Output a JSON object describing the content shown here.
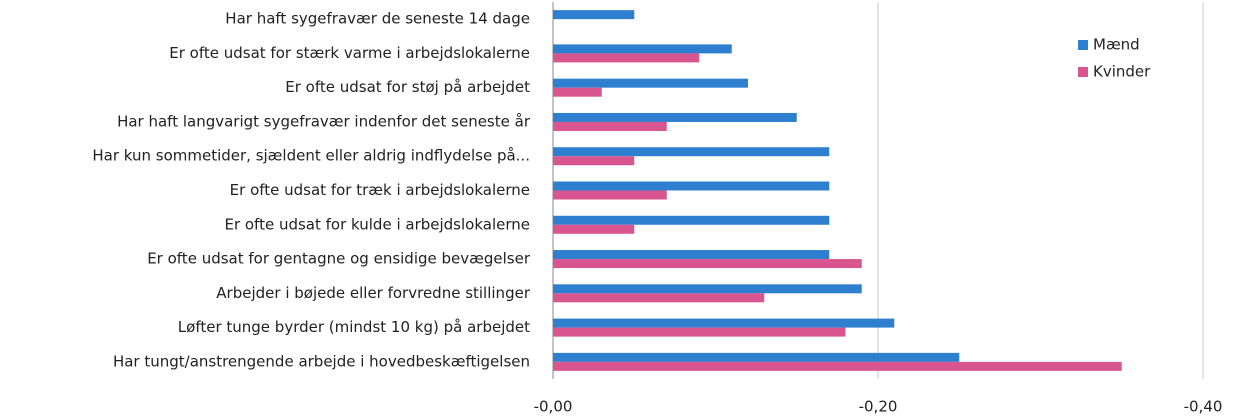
{
  "chart_data": {
    "type": "barh",
    "categories": [
      "Har haft sygefravær de seneste 14 dage",
      "Er ofte udsat for stærk varme i arbejdslokalerne",
      "Er ofte udsat for støj på arbejdet",
      "Har haft langvarigt sygefravær indenfor det seneste år",
      "Har kun sommetider, sjældent eller aldrig indflydelse på...",
      "Er ofte udsat for træk i arbejdslokalerne",
      "Er ofte udsat for kulde i arbejdslokalerne",
      "Er ofte udsat for gentagne  og ensidige bevægelser",
      "Arbejder i bøjede eller forvredne stillinger",
      "Løfter tunge byrder (mindst 10 kg) på arbejdet",
      "Har tungt/anstrengende arbejde i hovedbeskæftigelsen"
    ],
    "series": [
      {
        "name": "Mænd",
        "color": "#2e7fd0",
        "values": [
          -0.05,
          -0.11,
          -0.12,
          -0.15,
          -0.17,
          -0.17,
          -0.17,
          -0.17,
          -0.19,
          -0.21,
          -0.25
        ]
      },
      {
        "name": "Kvinder",
        "color": "#d9558f",
        "values": [
          null,
          -0.09,
          -0.03,
          -0.07,
          -0.05,
          -0.07,
          -0.05,
          -0.19,
          -0.13,
          -0.18,
          -0.35
        ]
      }
    ],
    "xlim": [
      0,
      -0.4
    ],
    "xticks": [
      {
        "value": 0,
        "label": "-0,00"
      },
      {
        "value": -0.2,
        "label": "-0,20"
      },
      {
        "value": -0.4,
        "label": "-0,40"
      }
    ],
    "grid": true,
    "legend": "top-right"
  }
}
